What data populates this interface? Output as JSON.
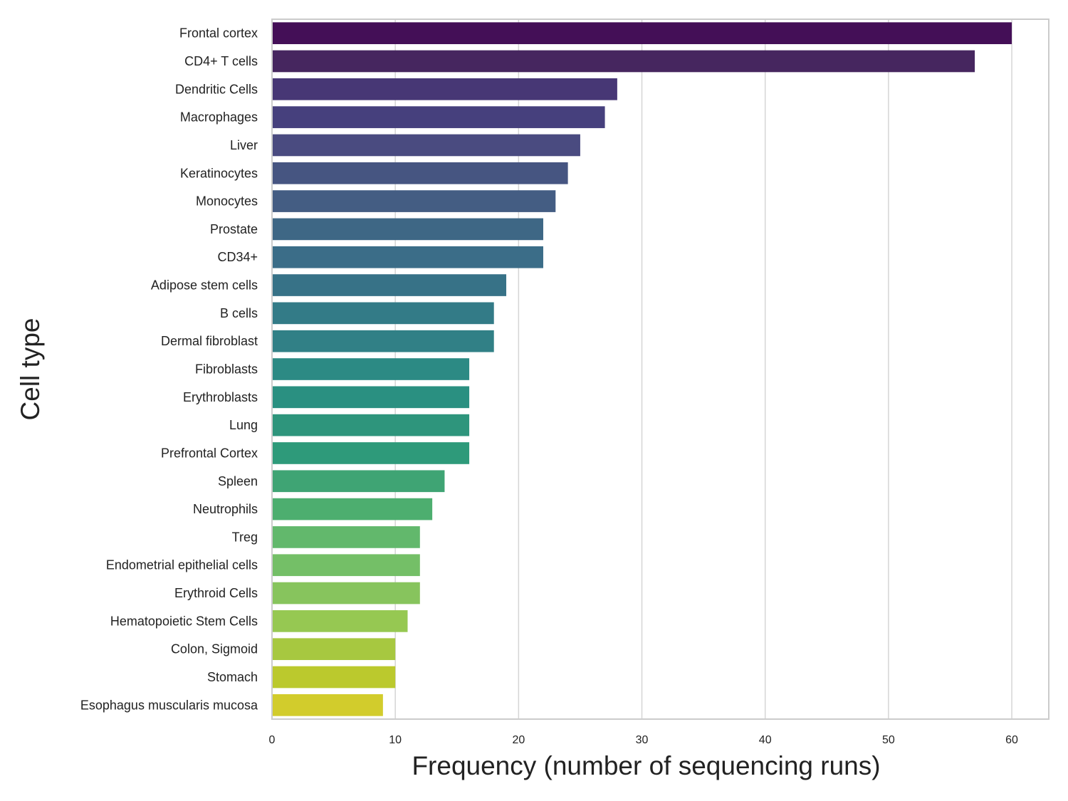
{
  "chart_data": {
    "type": "bar",
    "orientation": "horizontal",
    "title": "",
    "xlabel": "Frequency (number of sequencing runs)",
    "ylabel": "Cell type",
    "xlim": [
      0,
      63
    ],
    "xticks": [
      0,
      10,
      20,
      30,
      40,
      50,
      60
    ],
    "grid": "vertical",
    "categories": [
      "Frontal cortex",
      "CD4+ T cells",
      "Dendritic Cells",
      "Macrophages",
      "Liver",
      "Keratinocytes",
      "Monocytes",
      "Prostate",
      "CD34+",
      "Adipose stem cells",
      "B cells",
      "Dermal fibroblast",
      "Fibroblasts",
      "Erythroblasts",
      "Lung",
      "Prefrontal Cortex",
      "Spleen",
      "Neutrophils",
      "Treg",
      "Endometrial epithelial cells",
      "Erythroid Cells",
      "Hematopoietic Stem Cells",
      "Colon, Sigmoid",
      "Stomach",
      "Esophagus muscularis mucosa"
    ],
    "values": [
      60,
      57,
      28,
      27,
      25,
      24,
      23,
      22,
      22,
      19,
      18,
      18,
      16,
      16,
      16,
      16,
      14,
      13,
      12,
      12,
      12,
      11,
      10,
      10,
      9
    ],
    "colors": [
      "#440f57",
      "#46265f",
      "#473775",
      "#46407d",
      "#4a4b80",
      "#465581",
      "#445d83",
      "#3e6785",
      "#3b6d88",
      "#377287",
      "#337b87",
      "#318086",
      "#2c8a84",
      "#2a9081",
      "#2e957c",
      "#2e9a7a",
      "#3fa474",
      "#4dae6f",
      "#62b86c",
      "#74bf67",
      "#87c45d",
      "#96c852",
      "#a7c840",
      "#bbc92d",
      "#d2cc2c"
    ],
    "palette": "viridis"
  }
}
